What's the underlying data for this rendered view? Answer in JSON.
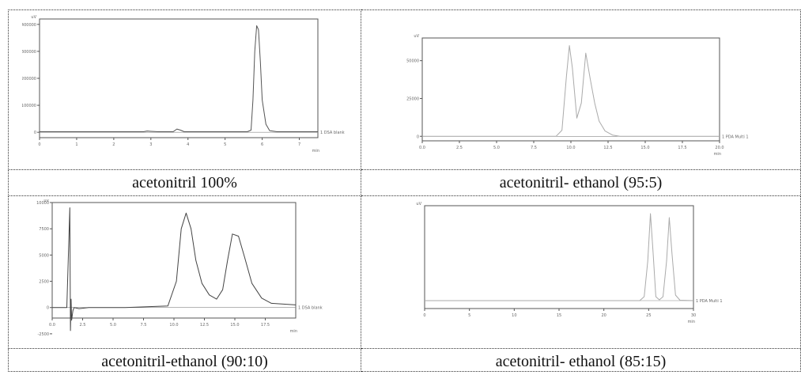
{
  "captions": [
    "acetonitril 100%",
    "acetonitril- ethanol (95:5)",
    "acetonitril-ethanol (90:10)",
    "acetonitril- ethanol (85:15)"
  ],
  "chart_data": [
    {
      "type": "line",
      "title": "",
      "xlabel": "min",
      "ylabel": "uV",
      "xlim": [
        0,
        7.5
      ],
      "ylim": [
        -20000,
        420000
      ],
      "xticks": [
        "0",
        "1",
        "2",
        "3",
        "4",
        "5",
        "6",
        "7"
      ],
      "yticks": [
        "0",
        "100000",
        "200000",
        "300000",
        "400000"
      ],
      "series": [
        {
          "name": "1 DSA blank",
          "color": "#555555",
          "x": [
            0,
            2.8,
            2.9,
            3.0,
            3.1,
            3.2,
            3.6,
            3.7,
            3.8,
            3.9,
            5.6,
            5.7,
            5.75,
            5.8,
            5.85,
            5.9,
            5.95,
            6.0,
            6.1,
            6.2,
            6.4,
            7.5
          ],
          "values": [
            2000,
            2000,
            4500,
            3500,
            2500,
            2000,
            2000,
            12000,
            8000,
            2000,
            2000,
            8000,
            120000,
            300000,
            395000,
            380000,
            260000,
            120000,
            30000,
            6000,
            2000,
            2000
          ]
        }
      ],
      "annotations": [
        "1 DSA blank"
      ]
    },
    {
      "type": "line",
      "title": "",
      "xlabel": "min",
      "ylabel": "uV",
      "xlim": [
        0,
        20
      ],
      "ylim": [
        -3000,
        65000
      ],
      "xticks": [
        "0.0",
        "2.5",
        "5.0",
        "7.5",
        "10.0",
        "12.5",
        "15.0",
        "17.5",
        "20.0"
      ],
      "yticks": [
        "0",
        "25000",
        "50000"
      ],
      "series": [
        {
          "name": "1 PDA Multi 1",
          "color": "#aaaaaa",
          "x": [
            0,
            9.0,
            9.4,
            9.7,
            9.9,
            10.1,
            10.4,
            10.7,
            11.0,
            11.3,
            11.6,
            11.9,
            12.3,
            12.8,
            13.3,
            20
          ],
          "values": [
            0,
            0,
            4000,
            40000,
            60000,
            45000,
            12000,
            22000,
            55000,
            38000,
            22000,
            10000,
            3500,
            800,
            0,
            0
          ]
        }
      ],
      "annotations": [
        "1 PDA Multi 1"
      ]
    },
    {
      "type": "line",
      "title": "",
      "xlabel": "min",
      "ylabel": "uV",
      "xlim": [
        0,
        20
      ],
      "ylim": [
        -1000,
        10000
      ],
      "xticks": [
        "0.0",
        "2.5",
        "5.0",
        "7.5",
        "10.0",
        "12.5",
        "15.0",
        "17.5"
      ],
      "yticks": [
        "-2500",
        "0",
        "2500",
        "5000",
        "7500",
        "10000"
      ],
      "series": [
        {
          "name": "1 DSA blank",
          "color": "#444444",
          "x": [
            0,
            1.2,
            1.45,
            1.5,
            1.55,
            1.6,
            1.7,
            1.8,
            2.2,
            3.0,
            6.0,
            9.5,
            10.2,
            10.6,
            11.0,
            11.4,
            11.8,
            12.3,
            12.9,
            13.5,
            14.0,
            14.4,
            14.8,
            15.3,
            15.8,
            16.4,
            17.2,
            18.0,
            20.0
          ],
          "values": [
            0,
            0,
            9500,
            -2200,
            800,
            -1200,
            -300,
            0,
            -100,
            0,
            0,
            150,
            2500,
            7500,
            9000,
            7500,
            4500,
            2300,
            1200,
            800,
            1700,
            4500,
            7000,
            6800,
            4800,
            2300,
            900,
            400,
            250
          ]
        }
      ],
      "annotations": [
        "1 DSA blank"
      ]
    },
    {
      "type": "line",
      "title": "",
      "xlabel": "min",
      "ylabel": "uV",
      "xlim": [
        0,
        30
      ],
      "ylim": [
        -1000,
        12000
      ],
      "xticks": [
        "0",
        "5",
        "10",
        "15",
        "20",
        "25",
        "30"
      ],
      "yticks": [],
      "series": [
        {
          "name": "1 PDA Multi 1",
          "color": "#aaaaaa",
          "x": [
            0,
            24.0,
            24.5,
            24.9,
            25.2,
            25.5,
            25.8,
            26.2,
            26.6,
            27.0,
            27.3,
            27.6,
            28.0,
            28.5,
            30
          ],
          "values": [
            0,
            0,
            500,
            5000,
            11000,
            6000,
            500,
            100,
            500,
            5000,
            10500,
            6000,
            700,
            50,
            0
          ]
        }
      ],
      "annotations": [
        "1 PDA Multi 1"
      ]
    }
  ]
}
